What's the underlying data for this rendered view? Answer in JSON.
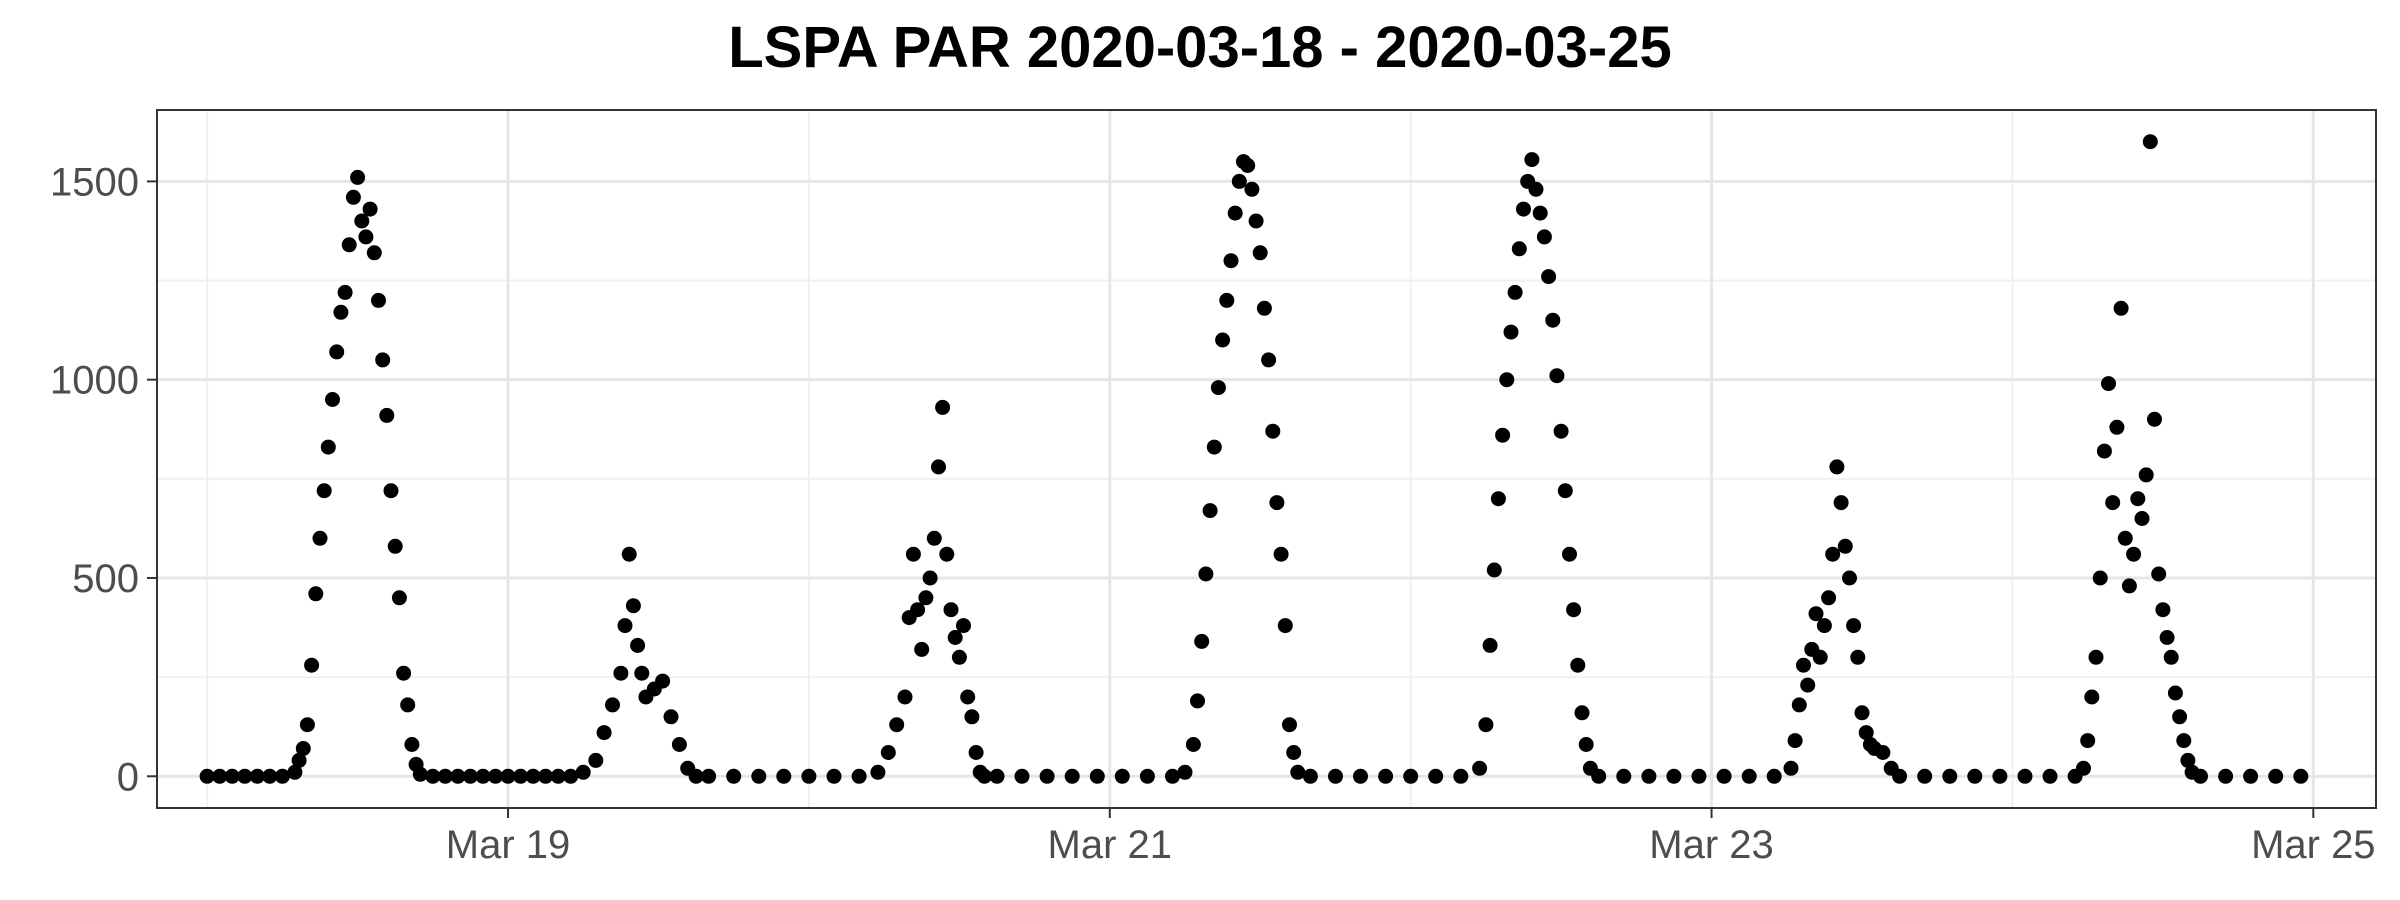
{
  "chart_data": {
    "type": "scatter",
    "title": "LSPA PAR 2020-03-18 - 2020-03-25",
    "xlabel": "",
    "ylabel": "",
    "x_unit": "datetime",
    "xlim": [
      "2020-03-17T20:00",
      "2020-03-25T05:00"
    ],
    "ylim": [
      -80,
      1680
    ],
    "x_ticks": [
      {
        "value": "2020-03-19T00:00",
        "label": "Mar 19"
      },
      {
        "value": "2020-03-21T00:00",
        "label": "Mar 21"
      },
      {
        "value": "2020-03-23T00:00",
        "label": "Mar 23"
      },
      {
        "value": "2020-03-25T00:00",
        "label": "Mar 25"
      }
    ],
    "y_ticks": [
      0,
      500,
      1000,
      1500
    ],
    "grid": true,
    "legend": "none",
    "point_color": "#000000",
    "series": [
      {
        "points": [
          [
            "2020-03-18T00:00",
            0
          ],
          [
            "2020-03-18T01:00",
            0
          ],
          [
            "2020-03-18T02:00",
            0
          ],
          [
            "2020-03-18T03:00",
            0
          ],
          [
            "2020-03-18T04:00",
            0
          ],
          [
            "2020-03-18T05:00",
            0
          ],
          [
            "2020-03-18T06:00",
            0
          ],
          [
            "2020-03-18T07:00",
            10
          ],
          [
            "2020-03-18T07:20",
            40
          ],
          [
            "2020-03-18T07:40",
            70
          ],
          [
            "2020-03-18T08:00",
            130
          ],
          [
            "2020-03-18T08:20",
            280
          ],
          [
            "2020-03-18T08:40",
            460
          ],
          [
            "2020-03-18T09:00",
            600
          ],
          [
            "2020-03-18T09:20",
            720
          ],
          [
            "2020-03-18T09:40",
            830
          ],
          [
            "2020-03-18T10:00",
            950
          ],
          [
            "2020-03-18T10:20",
            1070
          ],
          [
            "2020-03-18T10:40",
            1170
          ],
          [
            "2020-03-18T11:00",
            1220
          ],
          [
            "2020-03-18T11:20",
            1340
          ],
          [
            "2020-03-18T11:40",
            1460
          ],
          [
            "2020-03-18T12:00",
            1510
          ],
          [
            "2020-03-18T12:20",
            1400
          ],
          [
            "2020-03-18T12:40",
            1360
          ],
          [
            "2020-03-18T13:00",
            1430
          ],
          [
            "2020-03-18T13:20",
            1320
          ],
          [
            "2020-03-18T13:40",
            1200
          ],
          [
            "2020-03-18T14:00",
            1050
          ],
          [
            "2020-03-18T14:20",
            910
          ],
          [
            "2020-03-18T14:40",
            720
          ],
          [
            "2020-03-18T15:00",
            580
          ],
          [
            "2020-03-18T15:20",
            450
          ],
          [
            "2020-03-18T15:40",
            260
          ],
          [
            "2020-03-18T16:00",
            180
          ],
          [
            "2020-03-18T16:20",
            80
          ],
          [
            "2020-03-18T16:40",
            30
          ],
          [
            "2020-03-18T17:00",
            5
          ],
          [
            "2020-03-18T18:00",
            0
          ],
          [
            "2020-03-18T19:00",
            0
          ],
          [
            "2020-03-18T20:00",
            0
          ],
          [
            "2020-03-18T21:00",
            0
          ],
          [
            "2020-03-18T22:00",
            0
          ],
          [
            "2020-03-18T23:00",
            0
          ],
          [
            "2020-03-19T00:00",
            0
          ],
          [
            "2020-03-19T01:00",
            0
          ],
          [
            "2020-03-19T02:00",
            0
          ],
          [
            "2020-03-19T03:00",
            0
          ],
          [
            "2020-03-19T04:00",
            0
          ],
          [
            "2020-03-19T05:00",
            0
          ],
          [
            "2020-03-19T06:00",
            10
          ],
          [
            "2020-03-19T07:00",
            40
          ],
          [
            "2020-03-19T07:40",
            110
          ],
          [
            "2020-03-19T08:20",
            180
          ],
          [
            "2020-03-19T09:00",
            260
          ],
          [
            "2020-03-19T09:20",
            380
          ],
          [
            "2020-03-19T09:40",
            560
          ],
          [
            "2020-03-19T10:00",
            430
          ],
          [
            "2020-03-19T10:20",
            330
          ],
          [
            "2020-03-19T10:40",
            260
          ],
          [
            "2020-03-19T11:00",
            200
          ],
          [
            "2020-03-19T11:40",
            220
          ],
          [
            "2020-03-19T12:20",
            240
          ],
          [
            "2020-03-19T13:00",
            150
          ],
          [
            "2020-03-19T13:40",
            80
          ],
          [
            "2020-03-19T14:20",
            20
          ],
          [
            "2020-03-19T15:00",
            0
          ],
          [
            "2020-03-19T16:00",
            0
          ],
          [
            "2020-03-19T18:00",
            0
          ],
          [
            "2020-03-19T20:00",
            0
          ],
          [
            "2020-03-19T22:00",
            0
          ],
          [
            "2020-03-20T00:00",
            0
          ],
          [
            "2020-03-20T02:00",
            0
          ],
          [
            "2020-03-20T04:00",
            0
          ],
          [
            "2020-03-20T05:30",
            10
          ],
          [
            "2020-03-20T06:20",
            60
          ],
          [
            "2020-03-20T07:00",
            130
          ],
          [
            "2020-03-20T07:40",
            200
          ],
          [
            "2020-03-20T08:00",
            400
          ],
          [
            "2020-03-20T08:20",
            560
          ],
          [
            "2020-03-20T08:40",
            420
          ],
          [
            "2020-03-20T09:00",
            320
          ],
          [
            "2020-03-20T09:20",
            450
          ],
          [
            "2020-03-20T09:40",
            500
          ],
          [
            "2020-03-20T10:00",
            600
          ],
          [
            "2020-03-20T10:20",
            780
          ],
          [
            "2020-03-20T10:40",
            930
          ],
          [
            "2020-03-20T11:00",
            560
          ],
          [
            "2020-03-20T11:20",
            420
          ],
          [
            "2020-03-20T11:40",
            350
          ],
          [
            "2020-03-20T12:00",
            300
          ],
          [
            "2020-03-20T12:20",
            380
          ],
          [
            "2020-03-20T12:40",
            200
          ],
          [
            "2020-03-20T13:00",
            150
          ],
          [
            "2020-03-20T13:20",
            60
          ],
          [
            "2020-03-20T13:40",
            10
          ],
          [
            "2020-03-20T14:00",
            0
          ],
          [
            "2020-03-20T15:00",
            0
          ],
          [
            "2020-03-20T17:00",
            0
          ],
          [
            "2020-03-20T19:00",
            0
          ],
          [
            "2020-03-20T21:00",
            0
          ],
          [
            "2020-03-20T23:00",
            0
          ],
          [
            "2020-03-21T01:00",
            0
          ],
          [
            "2020-03-21T03:00",
            0
          ],
          [
            "2020-03-21T05:00",
            0
          ],
          [
            "2020-03-21T06:00",
            10
          ],
          [
            "2020-03-21T06:40",
            80
          ],
          [
            "2020-03-21T07:00",
            190
          ],
          [
            "2020-03-21T07:20",
            340
          ],
          [
            "2020-03-21T07:40",
            510
          ],
          [
            "2020-03-21T08:00",
            670
          ],
          [
            "2020-03-21T08:20",
            830
          ],
          [
            "2020-03-21T08:40",
            980
          ],
          [
            "2020-03-21T09:00",
            1100
          ],
          [
            "2020-03-21T09:20",
            1200
          ],
          [
            "2020-03-21T09:40",
            1300
          ],
          [
            "2020-03-21T10:00",
            1420
          ],
          [
            "2020-03-21T10:20",
            1500
          ],
          [
            "2020-03-21T10:40",
            1550
          ],
          [
            "2020-03-21T11:00",
            1540
          ],
          [
            "2020-03-21T11:20",
            1480
          ],
          [
            "2020-03-21T11:40",
            1400
          ],
          [
            "2020-03-21T12:00",
            1320
          ],
          [
            "2020-03-21T12:20",
            1180
          ],
          [
            "2020-03-21T12:40",
            1050
          ],
          [
            "2020-03-21T13:00",
            870
          ],
          [
            "2020-03-21T13:20",
            690
          ],
          [
            "2020-03-21T13:40",
            560
          ],
          [
            "2020-03-21T14:00",
            380
          ],
          [
            "2020-03-21T14:20",
            130
          ],
          [
            "2020-03-21T14:40",
            60
          ],
          [
            "2020-03-21T15:00",
            10
          ],
          [
            "2020-03-21T16:00",
            0
          ],
          [
            "2020-03-21T18:00",
            0
          ],
          [
            "2020-03-21T20:00",
            0
          ],
          [
            "2020-03-21T22:00",
            0
          ],
          [
            "2020-03-22T00:00",
            0
          ],
          [
            "2020-03-22T02:00",
            0
          ],
          [
            "2020-03-22T04:00",
            0
          ],
          [
            "2020-03-22T05:30",
            20
          ],
          [
            "2020-03-22T06:00",
            130
          ],
          [
            "2020-03-22T06:20",
            330
          ],
          [
            "2020-03-22T06:40",
            520
          ],
          [
            "2020-03-22T07:00",
            700
          ],
          [
            "2020-03-22T07:20",
            860
          ],
          [
            "2020-03-22T07:40",
            1000
          ],
          [
            "2020-03-22T08:00",
            1120
          ],
          [
            "2020-03-22T08:20",
            1220
          ],
          [
            "2020-03-22T08:40",
            1330
          ],
          [
            "2020-03-22T09:00",
            1430
          ],
          [
            "2020-03-22T09:20",
            1500
          ],
          [
            "2020-03-22T09:40",
            1555
          ],
          [
            "2020-03-22T10:00",
            1480
          ],
          [
            "2020-03-22T10:20",
            1420
          ],
          [
            "2020-03-22T10:40",
            1360
          ],
          [
            "2020-03-22T11:00",
            1260
          ],
          [
            "2020-03-22T11:20",
            1150
          ],
          [
            "2020-03-22T11:40",
            1010
          ],
          [
            "2020-03-22T12:00",
            870
          ],
          [
            "2020-03-22T12:20",
            720
          ],
          [
            "2020-03-22T12:40",
            560
          ],
          [
            "2020-03-22T13:00",
            420
          ],
          [
            "2020-03-22T13:20",
            280
          ],
          [
            "2020-03-22T13:40",
            160
          ],
          [
            "2020-03-22T14:00",
            80
          ],
          [
            "2020-03-22T14:20",
            20
          ],
          [
            "2020-03-22T15:00",
            0
          ],
          [
            "2020-03-22T17:00",
            0
          ],
          [
            "2020-03-22T19:00",
            0
          ],
          [
            "2020-03-22T21:00",
            0
          ],
          [
            "2020-03-22T23:00",
            0
          ],
          [
            "2020-03-23T01:00",
            0
          ],
          [
            "2020-03-23T03:00",
            0
          ],
          [
            "2020-03-23T05:00",
            0
          ],
          [
            "2020-03-23T06:20",
            20
          ],
          [
            "2020-03-23T06:40",
            90
          ],
          [
            "2020-03-23T07:00",
            180
          ],
          [
            "2020-03-23T07:20",
            280
          ],
          [
            "2020-03-23T07:40",
            230
          ],
          [
            "2020-03-23T08:00",
            320
          ],
          [
            "2020-03-23T08:20",
            410
          ],
          [
            "2020-03-23T08:40",
            300
          ],
          [
            "2020-03-23T09:00",
            380
          ],
          [
            "2020-03-23T09:20",
            450
          ],
          [
            "2020-03-23T09:40",
            560
          ],
          [
            "2020-03-23T10:00",
            780
          ],
          [
            "2020-03-23T10:20",
            690
          ],
          [
            "2020-03-23T10:40",
            580
          ],
          [
            "2020-03-23T11:00",
            500
          ],
          [
            "2020-03-23T11:20",
            380
          ],
          [
            "2020-03-23T11:40",
            300
          ],
          [
            "2020-03-23T12:00",
            160
          ],
          [
            "2020-03-23T12:20",
            110
          ],
          [
            "2020-03-23T12:40",
            80
          ],
          [
            "2020-03-23T13:00",
            70
          ],
          [
            "2020-03-23T13:40",
            60
          ],
          [
            "2020-03-23T14:20",
            20
          ],
          [
            "2020-03-23T15:00",
            0
          ],
          [
            "2020-03-23T17:00",
            0
          ],
          [
            "2020-03-23T19:00",
            0
          ],
          [
            "2020-03-23T21:00",
            0
          ],
          [
            "2020-03-23T23:00",
            0
          ],
          [
            "2020-03-24T01:00",
            0
          ],
          [
            "2020-03-24T03:00",
            0
          ],
          [
            "2020-03-24T05:00",
            0
          ],
          [
            "2020-03-24T05:40",
            20
          ],
          [
            "2020-03-24T06:00",
            90
          ],
          [
            "2020-03-24T06:20",
            200
          ],
          [
            "2020-03-24T06:40",
            300
          ],
          [
            "2020-03-24T07:00",
            500
          ],
          [
            "2020-03-24T07:20",
            820
          ],
          [
            "2020-03-24T07:40",
            990
          ],
          [
            "2020-03-24T08:00",
            690
          ],
          [
            "2020-03-24T08:20",
            880
          ],
          [
            "2020-03-24T08:40",
            1180
          ],
          [
            "2020-03-24T09:00",
            600
          ],
          [
            "2020-03-24T09:20",
            480
          ],
          [
            "2020-03-24T09:40",
            560
          ],
          [
            "2020-03-24T10:00",
            700
          ],
          [
            "2020-03-24T10:20",
            650
          ],
          [
            "2020-03-24T10:40",
            760
          ],
          [
            "2020-03-24T11:00",
            1600
          ],
          [
            "2020-03-24T11:20",
            900
          ],
          [
            "2020-03-24T11:40",
            510
          ],
          [
            "2020-03-24T12:00",
            420
          ],
          [
            "2020-03-24T12:20",
            350
          ],
          [
            "2020-03-24T12:40",
            300
          ],
          [
            "2020-03-24T13:00",
            210
          ],
          [
            "2020-03-24T13:20",
            150
          ],
          [
            "2020-03-24T13:40",
            90
          ],
          [
            "2020-03-24T14:00",
            40
          ],
          [
            "2020-03-24T14:20",
            10
          ],
          [
            "2020-03-24T15:00",
            0
          ],
          [
            "2020-03-24T17:00",
            0
          ],
          [
            "2020-03-24T19:00",
            0
          ],
          [
            "2020-03-24T21:00",
            0
          ],
          [
            "2020-03-24T23:00",
            0
          ]
        ]
      }
    ]
  }
}
